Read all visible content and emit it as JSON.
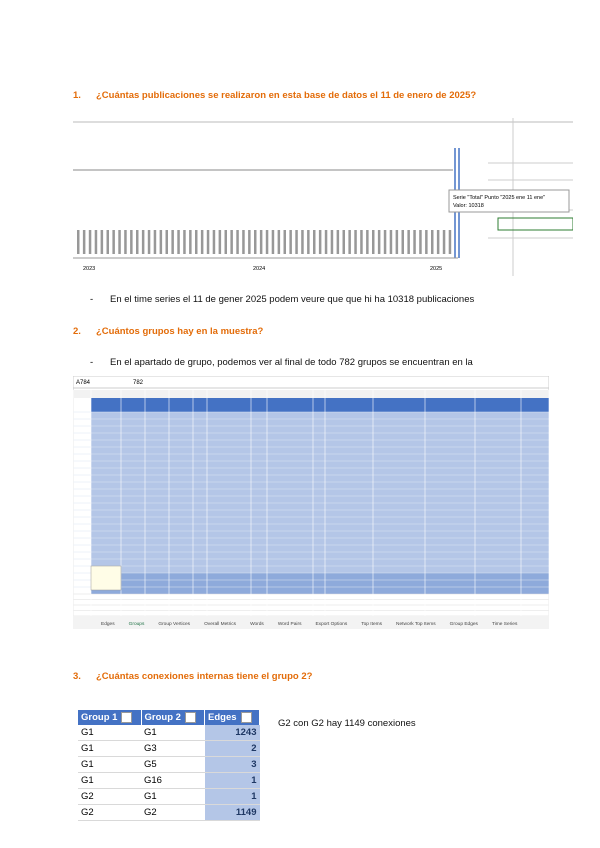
{
  "sections": [
    {
      "number": "1.",
      "question": "¿Cuántas publicaciones se realizaron en esta base de datos el 11 de enero de 2025?",
      "answer": "En el time series el 11 de gener 2025 podem veure que que hi ha 10318 publicaciones"
    },
    {
      "number": "2.",
      "question": "¿Cuántos grupos hay en la muestra?",
      "answer": "En el apartado de grupo, podemos ver al final de todo 782 grupos se encuentran en la"
    },
    {
      "number": "3.",
      "question": "¿Cuántas conexiones internas tiene el grupo 2?"
    }
  ],
  "chart_screenshot": {
    "tooltip": [
      "Serie \"Total\" Punto \"2025 ene 11 ene\"",
      "Valor: 10318"
    ],
    "year_labels": [
      "2023",
      "2024",
      "2025"
    ]
  },
  "spreadsheet_screenshot": {
    "name_box": "A784",
    "formula": "782",
    "tabs": [
      "Edges",
      "Groups",
      "Group Vertices",
      "Overall Metrics",
      "Words",
      "Word Pairs",
      "Export Options",
      "Top Items",
      "Network Top Items",
      "Group Edges",
      "Time Series"
    ]
  },
  "table": {
    "headers": [
      "Group 1",
      "Group 2",
      "Edges"
    ],
    "rows": [
      [
        "G1",
        "G1",
        "1243"
      ],
      [
        "G1",
        "G3",
        "2"
      ],
      [
        "G1",
        "G5",
        "3"
      ],
      [
        "G1",
        "G16",
        "1"
      ],
      [
        "G2",
        "G1",
        "1"
      ],
      [
        "G2",
        "G2",
        "1149"
      ]
    ]
  },
  "table_note": "G2 con G2 hay 1149 conexiones"
}
